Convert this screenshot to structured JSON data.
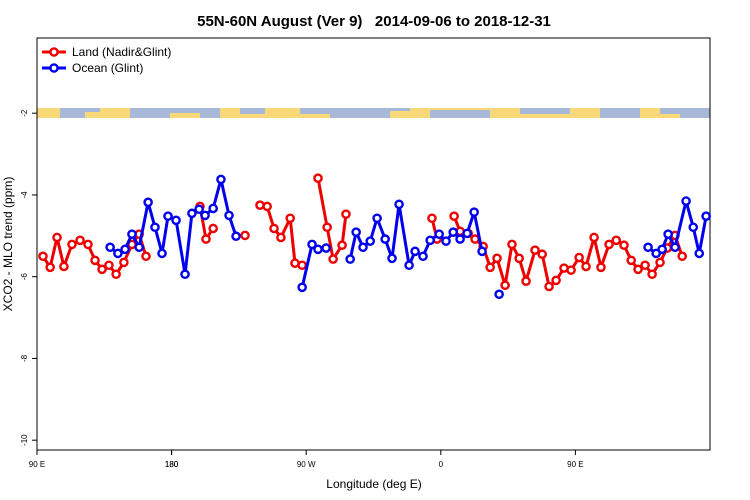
{
  "chart_data": {
    "type": "line",
    "title": "55N-60N August (Ver 9)   2014-09-06 to 2018-12-31",
    "xlabel": "Longitude (deg E)",
    "ylabel": "XCO2 - MLO trend (ppm)",
    "xlim": [
      90,
      540
    ],
    "xticks": [
      {
        "value": 90,
        "label": "90 E"
      },
      180,
      {
        "value": 270,
        "label": "90 W"
      },
      {
        "value": 360,
        "label": "0"
      },
      {
        "value": 450,
        "label": "90 E"
      },
      180.0001
    ],
    "ylim": [
      -10.24,
      -0.16
    ],
    "yticks": [
      -2,
      -4,
      -6,
      -8,
      -10
    ],
    "legend": "upper left",
    "series": [
      {
        "name": "Land (Nadir&Glint)",
        "color": "#ee0000",
        "x": [
          94.0,
          98.8,
          103.4,
          108.0,
          113.4,
          118.8,
          124.1,
          128.8,
          133.5,
          138.1,
          142.9,
          148.1,
          153.5,
          158.3,
          162.9,
          null,
          199.0,
          203.0,
          207.8,
          null,
          229.1,
          null,
          239.1,
          243.9,
          248.5,
          253.1,
          259.3,
          262.5,
          267.3,
          null,
          277.9,
          284.0,
          288.0,
          294.0,
          296.6,
          null,
          354.1,
          357.5,
          null,
          368.9,
          372.9,
          378.3,
          382.9,
          388.3,
          393.0,
          397.6,
          403.0,
          407.6,
          412.4,
          417.0,
          423.0,
          427.8,
          432.4,
          437.1,
          442.4,
          447.1,
          452.5,
          457.1,
          462.5,
          467.1,
          472.5,
          477.3,
          482.5,
          487.3,
          491.9,
          496.6,
          501.3,
          506.6,
          511.4,
          516.6,
          521.4
        ],
        "values": [
          -5.5,
          -5.77,
          -5.04,
          -5.75,
          -5.21,
          -5.11,
          -5.21,
          -5.6,
          -5.82,
          -5.72,
          -5.94,
          -5.65,
          -5.21,
          -4.96,
          -5.5,
          null,
          -4.28,
          -5.08,
          -4.82,
          null,
          -4.99,
          null,
          -4.25,
          -4.28,
          -4.82,
          -5.04,
          -4.57,
          -5.67,
          -5.72,
          null,
          -3.59,
          -4.79,
          -5.57,
          -5.23,
          -4.47,
          null,
          -4.57,
          -5.08,
          null,
          -4.52,
          -4.89,
          -4.94,
          -5.08,
          -5.26,
          -5.77,
          -5.55,
          -6.21,
          -5.21,
          -5.55,
          -6.11,
          -5.35,
          -5.45,
          -6.24,
          -6.09,
          -5.79,
          -5.84,
          -5.53,
          -5.75,
          -5.04,
          -5.77,
          -5.21,
          -5.11,
          -5.23,
          -5.6,
          -5.82,
          -5.72,
          -5.94,
          -5.65,
          -5.3,
          -4.99,
          -5.5
        ]
      },
      {
        "name": "Ocean (Glint)",
        "color": "#0000ee",
        "x": [
          138.9,
          144.1,
          148.9,
          153.5,
          158.3,
          164.3,
          168.9,
          173.6,
          177.6,
          183.0,
          189.0,
          193.6,
          198.4,
          202.4,
          207.8,
          213.0,
          218.4,
          223.1,
          null,
          267.3,
          273.9,
          277.9,
          283.3,
          null,
          299.4,
          303.4,
          308.0,
          312.8,
          317.4,
          322.8,
          327.4,
          332.1,
          338.8,
          342.8,
          348.1,
          352.9,
          358.9,
          363.5,
          368.3,
          372.9,
          377.6,
          382.3,
          387.6,
          null,
          399.0,
          null,
          498.6,
          504.0,
          508.0,
          512.0,
          516.6,
          524.0,
          528.8,
          532.8,
          537.4
        ],
        "values": [
          -5.28,
          -5.43,
          -5.33,
          -4.96,
          -5.28,
          -4.18,
          -4.79,
          -5.43,
          -4.52,
          -4.62,
          -5.94,
          -4.45,
          -4.35,
          -4.5,
          -4.33,
          -3.62,
          -4.5,
          -5.01,
          null,
          -6.26,
          -5.21,
          -5.33,
          -5.3,
          null,
          -5.57,
          -4.91,
          -5.28,
          -5.13,
          -4.57,
          -5.08,
          -5.55,
          -4.23,
          -5.72,
          -5.38,
          -5.5,
          -5.11,
          -4.96,
          -5.13,
          -4.91,
          -5.08,
          -4.94,
          -4.42,
          -5.38,
          null,
          -6.43,
          null,
          -5.28,
          -5.43,
          -5.33,
          -4.96,
          -5.28,
          -4.15,
          -4.79,
          -5.43,
          -4.52
        ]
      }
    ]
  }
}
